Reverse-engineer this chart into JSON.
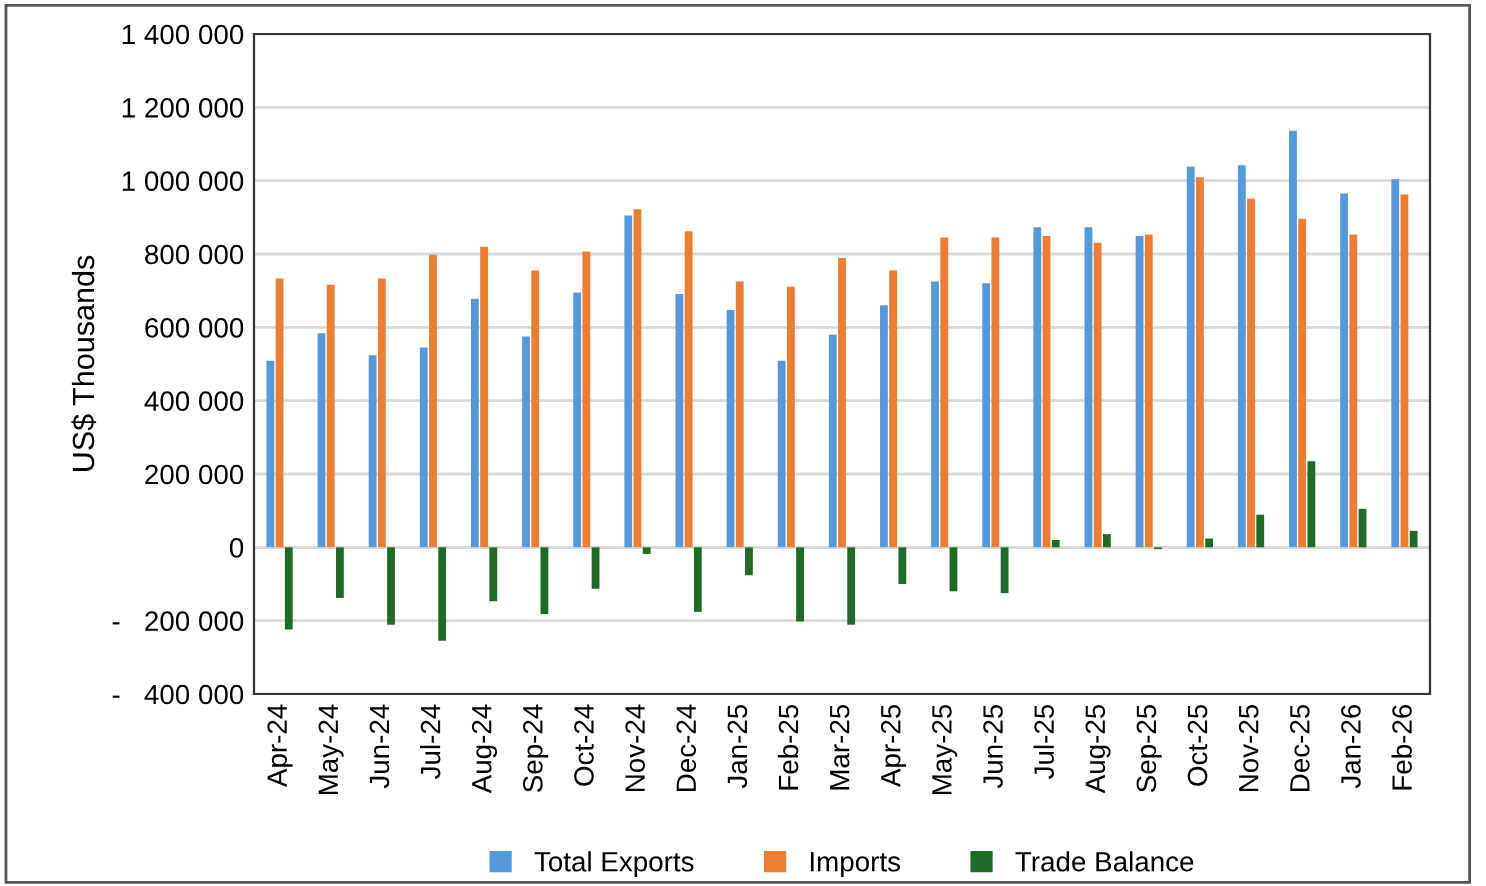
{
  "chart_data": {
    "type": "bar",
    "ylabel": "US$ Thousands",
    "categories": [
      "Apr-24",
      "May-24",
      "Jun-24",
      "Jul-24",
      "Aug-24",
      "Sep-24",
      "Oct-24",
      "Nov-24",
      "Dec-24",
      "Jan-25",
      "Feb-25",
      "Mar-25",
      "Apr-25",
      "May-25",
      "Jun-25",
      "Jul-25",
      "Aug-25",
      "Sep-25",
      "Oct-25",
      "Nov-25",
      "Dec-25",
      "Jan-26",
      "Feb-26"
    ],
    "series": [
      {
        "name": "Total Exports",
        "color": "#5599dd",
        "values": [
          509000,
          584000,
          524000,
          545000,
          678000,
          575000,
          695000,
          905000,
          691000,
          647000,
          509000,
          580000,
          660000,
          725000,
          720000,
          873000,
          873000,
          849000,
          1038000,
          1042000,
          1136000,
          965000,
          1004000
        ]
      },
      {
        "name": "Imports",
        "color": "#ed7d31",
        "values": [
          733000,
          716000,
          733000,
          798000,
          820000,
          755000,
          807000,
          922000,
          862000,
          725000,
          711000,
          789000,
          755000,
          845000,
          845000,
          849000,
          831000,
          853000,
          1009000,
          951000,
          896000,
          853000,
          962000
        ]
      },
      {
        "name": "Trade Balance",
        "color": "#1e6b25",
        "values": [
          -224000,
          -138000,
          -211000,
          -255000,
          -147000,
          -182000,
          -113000,
          -18000,
          -176000,
          -76000,
          -202000,
          -211000,
          -100000,
          -120000,
          -125000,
          20000,
          36000,
          -5000,
          24000,
          89000,
          235000,
          105000,
          45000
        ]
      }
    ],
    "ylim": [
      -400000,
      1400000
    ],
    "yticks": [
      {
        "value": -400000,
        "label": "-   400 000"
      },
      {
        "value": -200000,
        "label": "-   200 000"
      },
      {
        "value": 0,
        "label": "0"
      },
      {
        "value": 200000,
        "label": "200 000"
      },
      {
        "value": 400000,
        "label": "400 000"
      },
      {
        "value": 600000,
        "label": "600 000"
      },
      {
        "value": 800000,
        "label": "800 000"
      },
      {
        "value": 1000000,
        "label": "1 000 000"
      },
      {
        "value": 1200000,
        "label": "1 200 000"
      },
      {
        "value": 1400000,
        "label": "1 400 000"
      }
    ],
    "grid": "y",
    "legend": "bottom"
  }
}
